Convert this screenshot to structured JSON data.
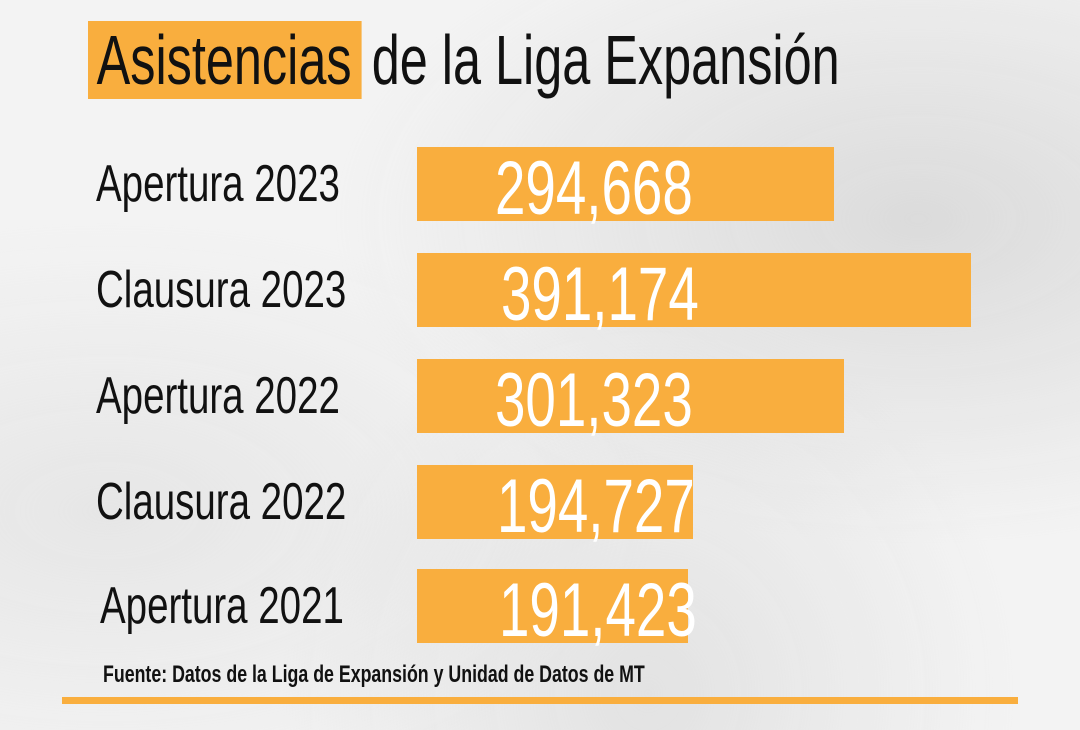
{
  "title": {
    "highlight": "Asistencias",
    "rest": "de la Liga Expansión"
  },
  "chart_data": {
    "type": "bar",
    "orientation": "horizontal",
    "title": "Asistencias de la Liga Expansión",
    "categories": [
      "Apertura 2023",
      "Clausura 2023",
      "Apertura 2022",
      "Clausura 2022",
      "Apertura 2021"
    ],
    "values": [
      294668,
      391174,
      301323,
      194727,
      191423
    ],
    "value_labels": [
      "294,668",
      "391,174",
      "301,323",
      "194,727",
      "191,423"
    ],
    "xlabel": "",
    "ylabel": "",
    "grid": false,
    "legend": "none",
    "bar_color": "#f9ae3e",
    "value_label_color": "#ffffff"
  },
  "source": "Fuente: Datos de la Liga de Expansión y Unidad de Datos de MT",
  "colors": {
    "accent": "#f9ae3e",
    "text": "#111111",
    "background": "#f3f3f3"
  }
}
